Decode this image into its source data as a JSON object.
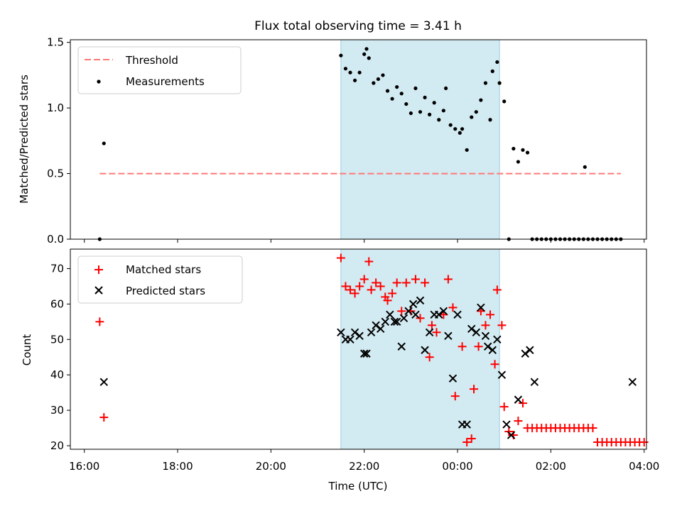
{
  "figure": {
    "title": "Flux total observing time = 3.41 h",
    "xlabel": "Time (UTC)",
    "x_tick_labels": [
      "16:00",
      "18:00",
      "20:00",
      "22:00",
      "00:00",
      "02:00",
      "04:00"
    ]
  },
  "colors": {
    "shade": "#add8e6",
    "threshold": "#ff7777",
    "measurements": "#000000",
    "matched": "#ff0000",
    "predicted": "#000000"
  },
  "chart_data": [
    {
      "type": "scatter",
      "ylabel": "Matched/Predicted stars",
      "ylim": [
        0,
        1.52
      ],
      "yticks": [
        0.0,
        0.5,
        1.0,
        1.5
      ],
      "ytick_labels": [
        "0.0",
        "0.5",
        "1.0",
        "1.5"
      ],
      "xlim_hours": [
        15.7,
        28.05
      ],
      "shaded_span_hours": [
        21.5,
        24.9
      ],
      "legend_position": "top-left",
      "threshold": {
        "name": "Threshold",
        "value": 0.5,
        "x_range_hours": [
          16.33,
          27.5
        ]
      },
      "series": [
        {
          "name": "Measurements",
          "x_hours": [
            16.33,
            16.42,
            21.5,
            21.6,
            21.7,
            21.8,
            21.9,
            22.0,
            22.05,
            22.1,
            22.2,
            22.3,
            22.4,
            22.5,
            22.6,
            22.7,
            22.8,
            22.9,
            23.0,
            23.1,
            23.2,
            23.3,
            23.4,
            23.5,
            23.6,
            23.7,
            23.75,
            23.85,
            23.95,
            24.05,
            24.1,
            24.2,
            24.3,
            24.4,
            24.5,
            24.6,
            24.7,
            24.75,
            24.85,
            24.9,
            25.0,
            25.1,
            25.2,
            25.3,
            25.4,
            25.5,
            25.6,
            25.7,
            25.8,
            25.9,
            26.0,
            26.1,
            26.2,
            26.3,
            26.4,
            26.5,
            26.6,
            26.7,
            26.73,
            26.8,
            26.9,
            27.0,
            27.1,
            27.2,
            27.3,
            27.4,
            27.5
          ],
          "values": [
            0.0,
            0.73,
            1.4,
            1.3,
            1.27,
            1.21,
            1.27,
            1.41,
            1.45,
            1.38,
            1.19,
            1.22,
            1.25,
            1.13,
            1.07,
            1.16,
            1.11,
            1.03,
            0.96,
            1.15,
            0.97,
            1.08,
            0.95,
            1.04,
            0.91,
            0.98,
            1.15,
            0.87,
            0.84,
            0.81,
            0.84,
            0.68,
            0.93,
            0.97,
            1.06,
            1.19,
            0.91,
            1.28,
            1.35,
            1.19,
            1.05,
            0.0,
            0.69,
            0.59,
            0.68,
            0.66,
            0.0,
            0.0,
            0.0,
            0.0,
            0.0,
            0.0,
            0.0,
            0.0,
            0.0,
            0.0,
            0.0,
            0.0,
            0.55,
            0.0,
            0.0,
            0.0,
            0.0,
            0.0,
            0.0,
            0.0,
            0.0
          ]
        }
      ]
    },
    {
      "type": "scatter",
      "ylabel": "Count",
      "ylim": [
        19,
        75.5
      ],
      "yticks": [
        20,
        30,
        40,
        50,
        60,
        70
      ],
      "ytick_labels": [
        "20",
        "30",
        "40",
        "50",
        "60",
        "70"
      ],
      "xlim_hours": [
        15.7,
        28.05
      ],
      "shaded_span_hours": [
        21.5,
        24.9
      ],
      "legend_position": "top-left",
      "series": [
        {
          "name": "Matched stars",
          "marker": "+",
          "points": [
            [
              16.33,
              55
            ],
            [
              16.42,
              28
            ],
            [
              21.5,
              73
            ],
            [
              21.6,
              65
            ],
            [
              21.7,
              64
            ],
            [
              21.8,
              63
            ],
            [
              21.9,
              65
            ],
            [
              22.0,
              67
            ],
            [
              22.1,
              72
            ],
            [
              22.15,
              64
            ],
            [
              22.25,
              66
            ],
            [
              22.35,
              65
            ],
            [
              22.45,
              62
            ],
            [
              22.5,
              61
            ],
            [
              22.6,
              63
            ],
            [
              22.7,
              66
            ],
            [
              22.8,
              58
            ],
            [
              22.9,
              66
            ],
            [
              23.0,
              58
            ],
            [
              23.1,
              67
            ],
            [
              23.2,
              56
            ],
            [
              23.3,
              66
            ],
            [
              23.4,
              45
            ],
            [
              23.45,
              54
            ],
            [
              23.55,
              52
            ],
            [
              23.7,
              57
            ],
            [
              23.8,
              67
            ],
            [
              23.9,
              59
            ],
            [
              23.95,
              34
            ],
            [
              24.1,
              48
            ],
            [
              24.2,
              21
            ],
            [
              24.3,
              22
            ],
            [
              24.35,
              36
            ],
            [
              24.45,
              48
            ],
            [
              24.5,
              58
            ],
            [
              24.6,
              54
            ],
            [
              24.7,
              57
            ],
            [
              24.8,
              43
            ],
            [
              24.85,
              64
            ],
            [
              24.95,
              54
            ],
            [
              25.0,
              31
            ],
            [
              25.1,
              24
            ],
            [
              25.2,
              23
            ],
            [
              25.3,
              27
            ],
            [
              25.4,
              32
            ],
            [
              25.5,
              25
            ],
            [
              25.6,
              25
            ],
            [
              25.7,
              25
            ],
            [
              25.8,
              25
            ],
            [
              25.9,
              25
            ],
            [
              26.0,
              25
            ],
            [
              26.1,
              25
            ],
            [
              26.2,
              25
            ],
            [
              26.3,
              25
            ],
            [
              26.4,
              25
            ],
            [
              26.5,
              25
            ],
            [
              26.6,
              25
            ],
            [
              26.7,
              25
            ],
            [
              26.8,
              25
            ],
            [
              26.9,
              25
            ],
            [
              27.0,
              21
            ],
            [
              27.1,
              21
            ],
            [
              27.2,
              21
            ],
            [
              27.3,
              21
            ],
            [
              27.4,
              21
            ],
            [
              27.5,
              21
            ],
            [
              27.6,
              21
            ],
            [
              27.7,
              21
            ],
            [
              27.8,
              21
            ],
            [
              27.9,
              21
            ],
            [
              28.0,
              21
            ]
          ]
        },
        {
          "name": "Predicted stars",
          "marker": "x",
          "points": [
            [
              16.42,
              38
            ],
            [
              21.5,
              52
            ],
            [
              21.6,
              50
            ],
            [
              21.7,
              50
            ],
            [
              21.8,
              52
            ],
            [
              21.9,
              51
            ],
            [
              22.0,
              46
            ],
            [
              22.05,
              46
            ],
            [
              22.15,
              52
            ],
            [
              22.25,
              54
            ],
            [
              22.35,
              53
            ],
            [
              22.45,
              55
            ],
            [
              22.55,
              57
            ],
            [
              22.65,
              55
            ],
            [
              22.7,
              55
            ],
            [
              22.8,
              48
            ],
            [
              22.85,
              56
            ],
            [
              22.95,
              58
            ],
            [
              23.05,
              60
            ],
            [
              23.1,
              57
            ],
            [
              23.2,
              61
            ],
            [
              23.3,
              47
            ],
            [
              23.4,
              52
            ],
            [
              23.5,
              57
            ],
            [
              23.6,
              57
            ],
            [
              23.7,
              58
            ],
            [
              23.8,
              51
            ],
            [
              23.9,
              39
            ],
            [
              24.0,
              57
            ],
            [
              24.1,
              26
            ],
            [
              24.2,
              26
            ],
            [
              24.3,
              53
            ],
            [
              24.4,
              52
            ],
            [
              24.5,
              59
            ],
            [
              24.6,
              51
            ],
            [
              24.65,
              48
            ],
            [
              24.75,
              47
            ],
            [
              24.85,
              50
            ],
            [
              24.95,
              40
            ],
            [
              25.05,
              26
            ],
            [
              25.15,
              23
            ],
            [
              25.3,
              33
            ],
            [
              25.45,
              46
            ],
            [
              25.55,
              47
            ],
            [
              25.65,
              38
            ],
            [
              27.75,
              38
            ]
          ]
        }
      ]
    }
  ]
}
